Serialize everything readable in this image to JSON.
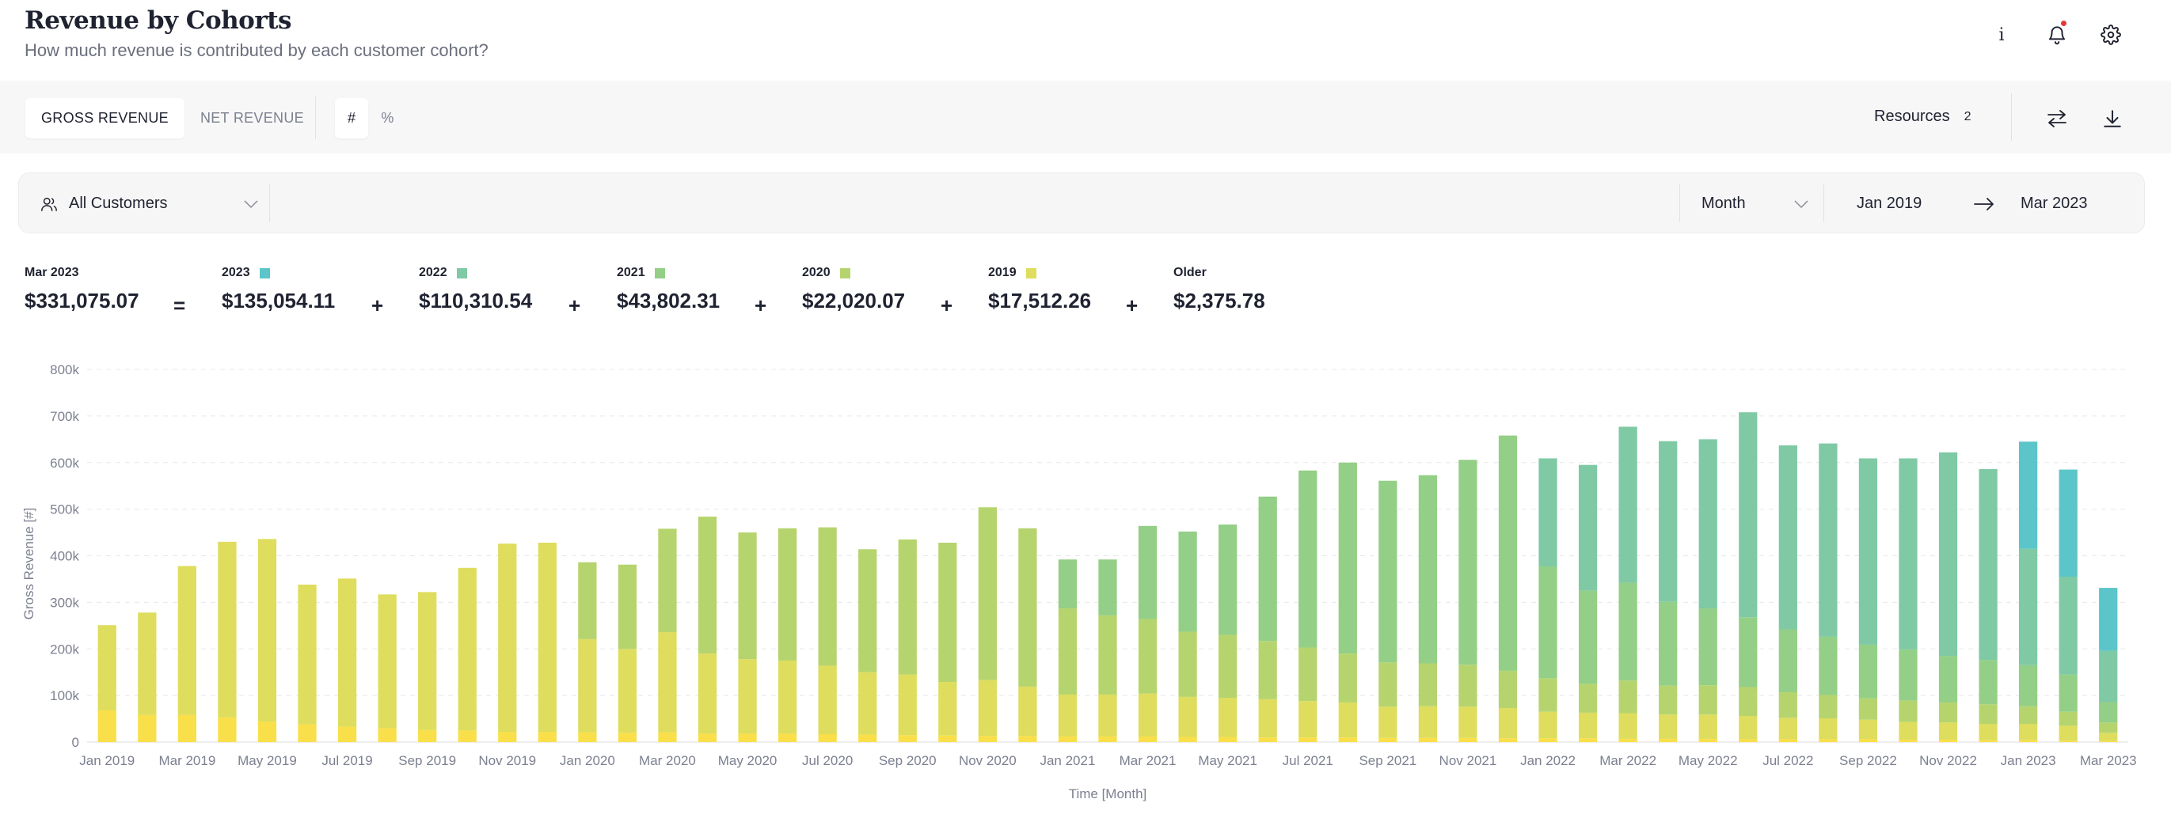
{
  "header": {
    "title": "Revenue by Cohorts",
    "subtitle": "How much revenue is contributed by each customer cohort?",
    "info_glyph": "i"
  },
  "toolbar": {
    "revenue_tabs": [
      {
        "label": "GROSS REVENUE",
        "active": true
      },
      {
        "label": "NET REVENUE",
        "active": false
      }
    ],
    "unit_tabs": [
      {
        "label": "#",
        "active": true
      },
      {
        "label": "%",
        "active": false
      }
    ],
    "resources_label": "Resources",
    "resources_count": "2"
  },
  "filters": {
    "segment": "All Customers",
    "granularity": "Month",
    "date_from": "Jan 2019",
    "date_to": "Mar 2023"
  },
  "summary": {
    "period": "Mar 2023",
    "total": "$331,075.07",
    "equals": "=",
    "plus": "+",
    "cohorts": [
      {
        "label": "2023",
        "value": "$135,054.11",
        "color": "#5bc5c9"
      },
      {
        "label": "2022",
        "value": "$110,310.54",
        "color": "#7fc9a4"
      },
      {
        "label": "2021",
        "value": "$43,802.31",
        "color": "#93cf86"
      },
      {
        "label": "2020",
        "value": "$22,020.07",
        "color": "#b6d46e"
      },
      {
        "label": "2019",
        "value": "$17,512.26",
        "color": "#dedd5d"
      },
      {
        "label": "Older",
        "value": "$2,375.78",
        "color": null
      }
    ]
  },
  "chart_data": {
    "type": "bar",
    "stacked": true,
    "xlabel": "Time [Month]",
    "ylabel": "Gross Revenue [#]",
    "ylim": [
      0,
      800000
    ],
    "yticks": [
      0,
      100000,
      200000,
      300000,
      400000,
      500000,
      600000,
      700000,
      800000
    ],
    "ytick_labels": [
      "0",
      "100k",
      "200k",
      "300k",
      "400k",
      "500k",
      "600k",
      "700k",
      "800k"
    ],
    "grid": true,
    "categories": [
      "Jan 2019",
      "Feb 2019",
      "Mar 2019",
      "Apr 2019",
      "May 2019",
      "Jun 2019",
      "Jul 2019",
      "Aug 2019",
      "Sep 2019",
      "Oct 2019",
      "Nov 2019",
      "Dec 2019",
      "Jan 2020",
      "Feb 2020",
      "Mar 2020",
      "Apr 2020",
      "May 2020",
      "Jun 2020",
      "Jul 2020",
      "Aug 2020",
      "Sep 2020",
      "Oct 2020",
      "Nov 2020",
      "Dec 2020",
      "Jan 2021",
      "Feb 2021",
      "Mar 2021",
      "Apr 2021",
      "May 2021",
      "Jun 2021",
      "Jul 2021",
      "Aug 2021",
      "Sep 2021",
      "Oct 2021",
      "Nov 2021",
      "Dec 2021",
      "Jan 2022",
      "Feb 2022",
      "Mar 2022",
      "Apr 2022",
      "May 2022",
      "Jun 2022",
      "Jul 2022",
      "Aug 2022",
      "Sep 2022",
      "Oct 2022",
      "Nov 2022",
      "Dec 2022",
      "Jan 2023",
      "Feb 2023",
      "Mar 2023"
    ],
    "xtick_labels": [
      "Jan 2019",
      "Mar 2019",
      "May 2019",
      "Jul 2019",
      "Sep 2019",
      "Nov 2019",
      "Jan 2020",
      "Mar 2020",
      "May 2020",
      "Jul 2020",
      "Sep 2020",
      "Nov 2020",
      "Jan 2021",
      "Mar 2021",
      "May 2021",
      "Jul 2021",
      "Sep 2021",
      "Nov 2021",
      "Jan 2022",
      "Mar 2022",
      "May 2022",
      "Jul 2022",
      "Sep 2022",
      "Nov 2022",
      "Jan 2023",
      "Mar 2023"
    ],
    "series": [
      {
        "name": "Older",
        "color": "#f9df49",
        "values": [
          68000,
          58000,
          58000,
          53000,
          44000,
          38000,
          33000,
          30000,
          26000,
          25000,
          22000,
          22000,
          21000,
          20000,
          21000,
          18000,
          18000,
          18000,
          17000,
          16000,
          15000,
          14000,
          13000,
          13000,
          12000,
          12000,
          12000,
          11000,
          11000,
          10000,
          10000,
          10000,
          9000,
          9000,
          9000,
          8000,
          8000,
          8000,
          7000,
          7000,
          7000,
          6000,
          6000,
          6000,
          6000,
          5000,
          5000,
          4000,
          4000,
          3000,
          2376
        ]
      },
      {
        "name": "2019",
        "color": "#dedd5d",
        "values": [
          183000,
          220000,
          320000,
          377000,
          392000,
          300000,
          318000,
          287000,
          296000,
          349000,
          404000,
          406000,
          200000,
          180000,
          215000,
          172000,
          160000,
          157000,
          147000,
          134000,
          130000,
          115000,
          120000,
          106000,
          90000,
          90000,
          92000,
          86000,
          84000,
          82000,
          78000,
          75000,
          67000,
          68000,
          67000,
          65000,
          57000,
          55000,
          55000,
          52000,
          52000,
          50000,
          46000,
          45000,
          42000,
          38000,
          37000,
          35000,
          35000,
          32000,
          17512
        ]
      },
      {
        "name": "2020",
        "color": "#b6d46e",
        "values": [
          0,
          0,
          0,
          0,
          0,
          0,
          0,
          0,
          0,
          0,
          0,
          0,
          165000,
          181000,
          222000,
          294000,
          272000,
          284000,
          297000,
          264000,
          290000,
          299000,
          371000,
          340000,
          185000,
          170000,
          160000,
          140000,
          135000,
          125000,
          115000,
          105000,
          95000,
          92000,
          90000,
          80000,
          72000,
          62000,
          70000,
          62000,
          63000,
          62000,
          55000,
          50000,
          46000,
          46000,
          43000,
          42000,
          38000,
          30000,
          22020
        ]
      },
      {
        "name": "2021",
        "color": "#93cf86",
        "values": [
          0,
          0,
          0,
          0,
          0,
          0,
          0,
          0,
          0,
          0,
          0,
          0,
          0,
          0,
          0,
          0,
          0,
          0,
          0,
          0,
          0,
          0,
          0,
          0,
          105000,
          120000,
          200000,
          215000,
          237000,
          310000,
          380000,
          410000,
          390000,
          404000,
          440000,
          505000,
          240000,
          200000,
          210000,
          180000,
          165000,
          150000,
          135000,
          125000,
          115000,
          110000,
          100000,
          95000,
          88000,
          80000,
          43802
        ]
      },
      {
        "name": "2022",
        "color": "#7fc9a4",
        "values": [
          0,
          0,
          0,
          0,
          0,
          0,
          0,
          0,
          0,
          0,
          0,
          0,
          0,
          0,
          0,
          0,
          0,
          0,
          0,
          0,
          0,
          0,
          0,
          0,
          0,
          0,
          0,
          0,
          0,
          0,
          0,
          0,
          0,
          0,
          0,
          0,
          232000,
          270000,
          335000,
          345000,
          363000,
          440000,
          395000,
          415000,
          400000,
          410000,
          437000,
          410000,
          250000,
          210000,
          110311
        ]
      },
      {
        "name": "2023",
        "color": "#5bc5c9",
        "values": [
          0,
          0,
          0,
          0,
          0,
          0,
          0,
          0,
          0,
          0,
          0,
          0,
          0,
          0,
          0,
          0,
          0,
          0,
          0,
          0,
          0,
          0,
          0,
          0,
          0,
          0,
          0,
          0,
          0,
          0,
          0,
          0,
          0,
          0,
          0,
          0,
          0,
          0,
          0,
          0,
          0,
          0,
          0,
          0,
          0,
          0,
          0,
          0,
          230000,
          230000,
          135054
        ]
      }
    ]
  }
}
